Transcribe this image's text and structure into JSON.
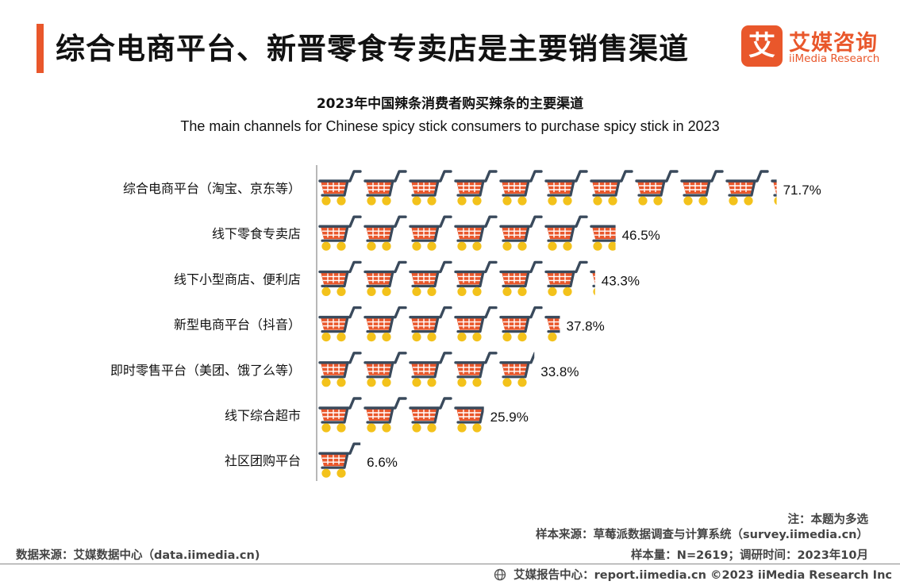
{
  "header": {
    "title": "综合电商平台、新晋零食专卖店是主要销售渠道"
  },
  "logo": {
    "glyph": "艾",
    "name_cn": "艾媒咨询",
    "name_en": "iiMedia Research",
    "icon": "iimedia-logo-icon"
  },
  "colors": {
    "accent": "#e9572b",
    "cart_basket": "#e9572b",
    "cart_frame": "#3a4a5c",
    "cart_wheel": "#f3c21b",
    "axis": "#b8b8b8"
  },
  "chart_data": {
    "type": "bar",
    "title": "2023年中国辣条消费者购买辣条的主要渠道",
    "subtitle": "The main channels for Chinese spicy stick consumers to purchase spicy stick in 2023",
    "categories": [
      "综合电商平台（淘宝、京东等）",
      "线下零食专卖店",
      "线下小型商店、便利店",
      "新型电商平台（抖音）",
      "即时零售平台（美团、饿了么等）",
      "线下综合超市",
      "社区团购平台"
    ],
    "values": [
      71.7,
      46.5,
      43.3,
      37.8,
      33.8,
      25.9,
      6.6
    ],
    "value_labels": [
      "71.7%",
      "46.5%",
      "43.3%",
      "37.8%",
      "33.8%",
      "25.9%",
      "6.6%"
    ],
    "unit": "%",
    "xlim": [
      0,
      72
    ],
    "icon_unit": "shopping-cart-icon",
    "orientation": "horizontal",
    "grid": false
  },
  "notes": {
    "note": "注：本题为多选",
    "sample_source": "样本来源：草莓派数据调查与计算系统（survey.iimedia.cn）",
    "sample_size": "样本量：N=2619；调研时间：2023年10月",
    "data_source": "数据来源：艾媒数据中心（data.iimedia.cn)"
  },
  "footer": {
    "text": "艾媒报告中心：report.iimedia.cn  ©2023  iiMedia Research  Inc",
    "icon": "globe-icon"
  }
}
